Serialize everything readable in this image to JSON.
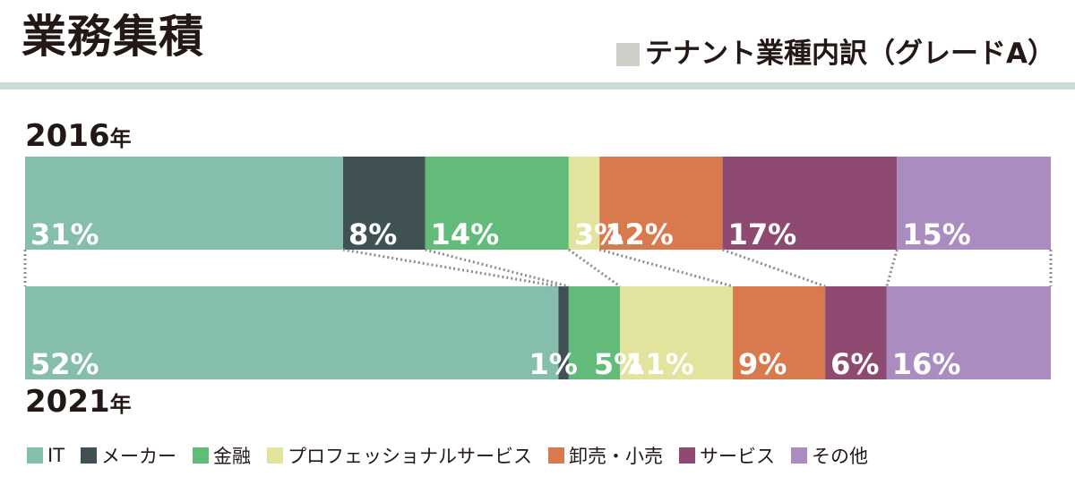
{
  "title": "業務集積",
  "subtitle": "テナント業種内訳（グレードA）",
  "colors": {
    "IT": "#86bead",
    "メーカー": "#3f5153",
    "金融": "#62bb79",
    "プロフェッショナルサービス": "#e2e39c",
    "卸売・小売": "#d9794e",
    "サービス": "#8e4a70",
    "その他": "#ab8cc0",
    "subtitle_swatch": "#cfcfc9",
    "rule": "#cddcd1",
    "label_text": "#ffffff",
    "connector": "#8c8c8c"
  },
  "chart_data": {
    "type": "bar",
    "orientation": "horizontal-stacked-100",
    "categories": [
      "2016年",
      "2021年"
    ],
    "series": [
      {
        "name": "IT",
        "values": [
          31,
          52
        ]
      },
      {
        "name": "メーカー",
        "values": [
          8,
          1
        ]
      },
      {
        "name": "金融",
        "values": [
          14,
          5
        ]
      },
      {
        "name": "プロフェッショナルサービス",
        "values": [
          3,
          11
        ]
      },
      {
        "name": "卸売・小売",
        "values": [
          12,
          9
        ]
      },
      {
        "name": "サービス",
        "values": [
          17,
          6
        ]
      },
      {
        "name": "その他",
        "values": [
          15,
          16
        ]
      }
    ],
    "value_labels": [
      [
        "31%",
        "8%",
        "14%",
        "3%",
        "12%",
        "17%",
        "15%"
      ],
      [
        "52%",
        "1%",
        "5%",
        "11%",
        "9%",
        "6%",
        "16%"
      ]
    ],
    "legend_position": "bottom"
  },
  "legend": [
    "IT",
    "メーカー",
    "金融",
    "プロフェッショナルサービス",
    "卸売・小売",
    "サービス",
    "その他"
  ],
  "years": {
    "top_num": "2016",
    "top_unit": "年",
    "bottom_num": "2021",
    "bottom_unit": "年"
  }
}
